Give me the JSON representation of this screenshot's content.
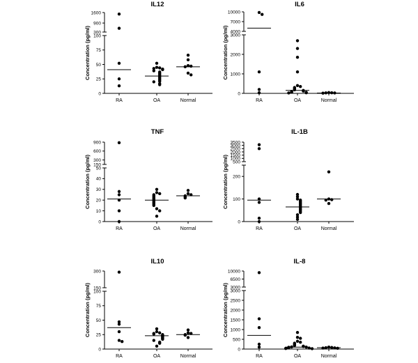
{
  "chart_data": [
    {
      "type": "scatter",
      "title": "IL12",
      "ylabel": "Concentration (pg/ml)",
      "categories": [
        "RA",
        "OA",
        "Normal"
      ],
      "axis_break": true,
      "lower_ylim": [
        0,
        100
      ],
      "lower_ticks": [
        "0",
        "25",
        "50",
        "75",
        "100"
      ],
      "upper_ylim": [
        300,
        1600
      ],
      "upper_ticks": [
        "300",
        "900",
        "1600"
      ],
      "points": {
        "RA": [
          1500,
          550,
          52,
          25,
          13
        ],
        "OA": [
          52,
          45,
          44,
          43,
          42,
          41,
          39,
          37,
          35,
          33,
          31,
          29,
          27,
          25,
          23,
          21,
          20,
          17,
          15
        ],
        "Normal": [
          66,
          58,
          48,
          47,
          46,
          35,
          32
        ]
      },
      "medians": {
        "RA": 41,
        "OA": 30,
        "Normal": 46
      }
    },
    {
      "type": "scatter",
      "title": "IL6",
      "ylabel": "Concentration (pg/ml)",
      "categories": [
        "RA",
        "OA",
        "Normal"
      ],
      "axis_break": true,
      "lower_ylim": [
        0,
        3000
      ],
      "lower_ticks": [
        "0",
        "1000",
        "2000",
        "3000"
      ],
      "upper_ylim": [
        4000,
        10000
      ],
      "upper_ticks": [
        "4000",
        "7000",
        "10000"
      ],
      "points": {
        "RA": [
          9800,
          9200,
          1100,
          200,
          30
        ],
        "OA": [
          2700,
          2300,
          1850,
          1100,
          400,
          350,
          300,
          250,
          200,
          180,
          150,
          120,
          100,
          80,
          60,
          50,
          30,
          20
        ],
        "Normal": [
          40,
          30,
          25,
          20,
          10
        ]
      },
      "medians": {
        "RA": 5000,
        "OA": 150,
        "Normal": 20
      }
    },
    {
      "type": "scatter",
      "title": "TNF",
      "ylabel": "Concentration (pg/ml)",
      "categories": [
        "RA",
        "OA",
        "Normal"
      ],
      "axis_break": true,
      "lower_ylim": [
        0,
        50
      ],
      "lower_ticks": [
        "0",
        "10",
        "20",
        "30",
        "40",
        "50"
      ],
      "upper_ylim": [
        150,
        900
      ],
      "upper_ticks": [
        "150",
        "300",
        "600",
        "900"
      ],
      "points": {
        "RA": [
          880,
          28,
          25,
          20,
          10,
          0
        ],
        "OA": [
          30,
          27,
          26,
          25,
          24,
          23,
          22,
          21,
          20,
          19,
          18,
          17,
          16,
          15,
          12,
          10,
          5
        ],
        "Normal": [
          29,
          26,
          25,
          24,
          23,
          22
        ]
      },
      "medians": {
        "RA": 21,
        "OA": 20,
        "Normal": 24
      }
    },
    {
      "type": "scatter",
      "title": "IL-1B",
      "ylabel": "Concentration (pg/ml)",
      "categories": [
        "RA",
        "OA",
        "Normal"
      ],
      "axis_break": true,
      "lower_ylim": [
        0,
        250
      ],
      "lower_ticks": [
        "0",
        "100",
        "200"
      ],
      "upper_ylim": [
        500,
        3500
      ],
      "upper_ticks": [
        "500",
        "1000",
        "1500",
        "2000",
        "2500",
        "3000",
        "3500"
      ],
      "points": {
        "RA": [
          3100,
          2500,
          100,
          85,
          15,
          0
        ],
        "OA": [
          120,
          110,
          100,
          95,
          90,
          85,
          80,
          75,
          70,
          65,
          60,
          55,
          50,
          45,
          40,
          30,
          20,
          10
        ],
        "Normal": [
          220,
          100,
          97,
          95,
          80
        ]
      },
      "medians": {
        "RA": 95,
        "OA": 65,
        "Normal": 100
      }
    },
    {
      "type": "scatter",
      "title": "IL10",
      "ylabel": "Concentration (pg/ml)",
      "categories": [
        "RA",
        "OA",
        "Normal"
      ],
      "axis_break": true,
      "lower_ylim": [
        0,
        100
      ],
      "lower_ticks": [
        "0",
        "25",
        "50",
        "75",
        "100"
      ],
      "upper_ylim": [
        150,
        300
      ],
      "upper_ticks": [
        "150",
        "300"
      ],
      "points": {
        "RA": [
          290,
          47,
          43,
          30,
          15,
          13
        ],
        "OA": [
          35,
          30,
          28,
          27,
          26,
          25,
          24,
          23,
          22,
          21,
          20,
          19,
          18,
          17,
          15,
          12,
          10,
          5
        ],
        "Normal": [
          33,
          28,
          27,
          25,
          24,
          20
        ]
      },
      "medians": {
        "RA": 37,
        "OA": 23,
        "Normal": 25
      }
    },
    {
      "type": "scatter",
      "title": "IL-8",
      "ylabel": "Concentration (pg/ml)",
      "categories": [
        "RA",
        "OA",
        "Normal"
      ],
      "axis_break": true,
      "lower_ylim": [
        0,
        3000
      ],
      "lower_ticks": [
        "0",
        "500",
        "1000",
        "1500",
        "2000",
        "2500",
        "3000"
      ],
      "upper_ylim": [
        3000,
        10000
      ],
      "upper_ticks": [
        "3000",
        "6500",
        "10000"
      ],
      "points": {
        "RA": [
          9300,
          1550,
          1100,
          250,
          100
        ],
        "OA": [
          850,
          600,
          550,
          400,
          350,
          300,
          250,
          200,
          180,
          150,
          130,
          110,
          100,
          90,
          80,
          60,
          50,
          40,
          30,
          20
        ],
        "Normal": [
          100,
          80,
          70,
          60,
          50,
          40
        ]
      },
      "medians": {
        "RA": 700,
        "OA": 100,
        "Normal": 70
      }
    }
  ]
}
